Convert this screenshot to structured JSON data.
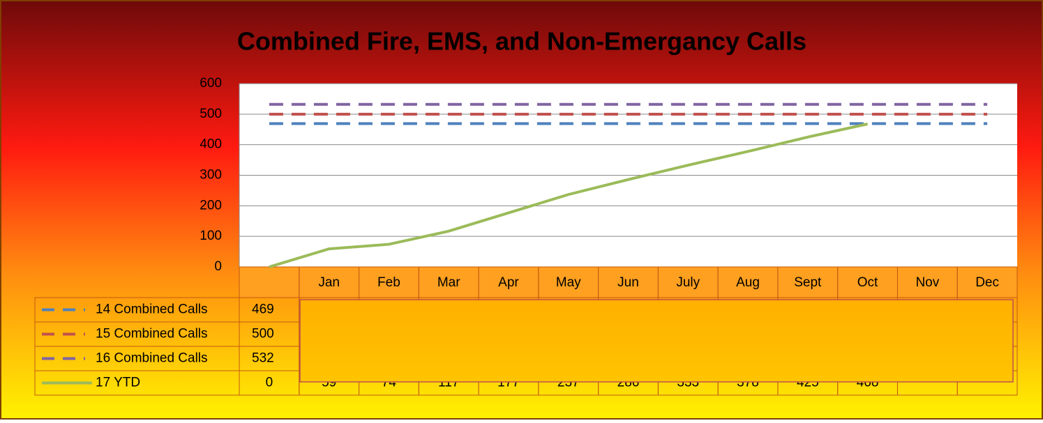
{
  "chart_data": {
    "type": "line",
    "title": "Combined Fire, EMS, and Non-Emergancy Calls",
    "categories": [
      null,
      "Jan",
      "Feb",
      "Mar",
      "Apr",
      "May",
      "Jun",
      "July",
      "Aug",
      "Sept",
      "Oct",
      "Nov",
      "Dec"
    ],
    "series": [
      {
        "name": "14 Combined Calls",
        "color": "#4f81bd",
        "dashed": true,
        "values": [
          469,
          469,
          469,
          469,
          469,
          469,
          469,
          469,
          469,
          469,
          469,
          469,
          469
        ]
      },
      {
        "name": "15 Combined Calls",
        "color": "#c0504d",
        "dashed": true,
        "values": [
          500,
          500,
          500,
          500,
          500,
          500,
          500,
          500,
          500,
          500,
          500,
          500,
          500
        ]
      },
      {
        "name": "16 Combined Calls",
        "color": "#8064a2",
        "dashed": true,
        "values": [
          532,
          532,
          532,
          532,
          532,
          532,
          532,
          532,
          532,
          532,
          532,
          532,
          532
        ]
      },
      {
        "name": "17 YTD",
        "color": "#9bbb59",
        "dashed": false,
        "values": [
          0,
          59,
          74,
          117,
          177,
          237,
          286,
          333,
          378,
          425,
          468,
          null,
          null
        ]
      }
    ],
    "ylim": [
      0,
      600
    ],
    "yticks": [
      0,
      100,
      200,
      300,
      400,
      500,
      600
    ],
    "grid": true
  }
}
